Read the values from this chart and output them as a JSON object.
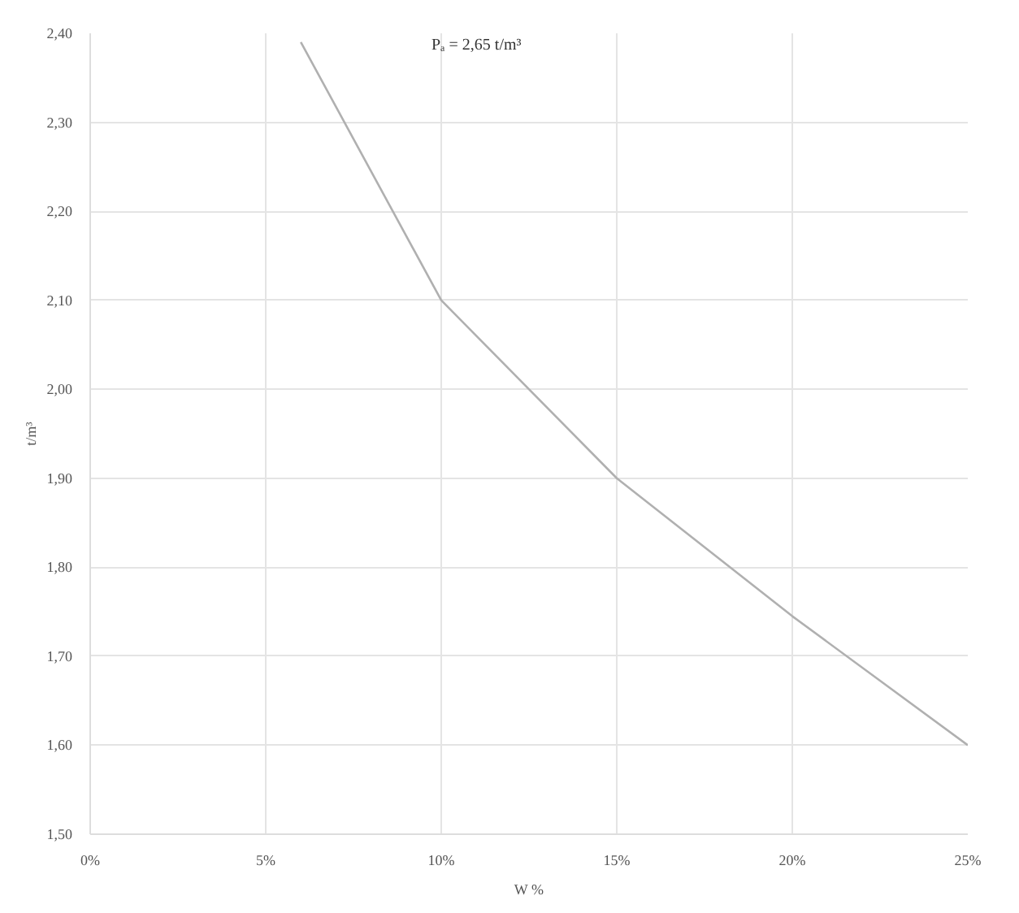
{
  "chart_data": {
    "type": "line",
    "xlabel": "W %",
    "ylabel": "t/m³",
    "annotations": [
      "Pₐ = 2,65 t/m³"
    ],
    "x": [
      6,
      10,
      15,
      20,
      25
    ],
    "series": [
      {
        "color": "#b0b0b0",
        "values": [
          2.39,
          2.1,
          1.9,
          1.745,
          1.6
        ]
      }
    ],
    "xlim": [
      0,
      25
    ],
    "ylim": [
      1.5,
      2.4
    ],
    "xticks": [
      {
        "value": 0,
        "label": "0%"
      },
      {
        "value": 5,
        "label": "5%"
      },
      {
        "value": 10,
        "label": "10%"
      },
      {
        "value": 15,
        "label": "15%"
      },
      {
        "value": 20,
        "label": "20%"
      },
      {
        "value": 25,
        "label": "25%"
      }
    ],
    "yticks": [
      {
        "value": 1.5,
        "label": "1,50"
      },
      {
        "value": 1.6,
        "label": "1,60"
      },
      {
        "value": 1.7,
        "label": "1,70"
      },
      {
        "value": 1.8,
        "label": "1,80"
      },
      {
        "value": 1.9,
        "label": "1,90"
      },
      {
        "value": 2.0,
        "label": "2,00"
      },
      {
        "value": 2.1,
        "label": "2,10"
      },
      {
        "value": 2.2,
        "label": "2,20"
      },
      {
        "value": 2.3,
        "label": "2,30"
      },
      {
        "value": 2.4,
        "label": "2,40"
      }
    ],
    "grid": true,
    "marker": "none",
    "line_style": "solid"
  }
}
